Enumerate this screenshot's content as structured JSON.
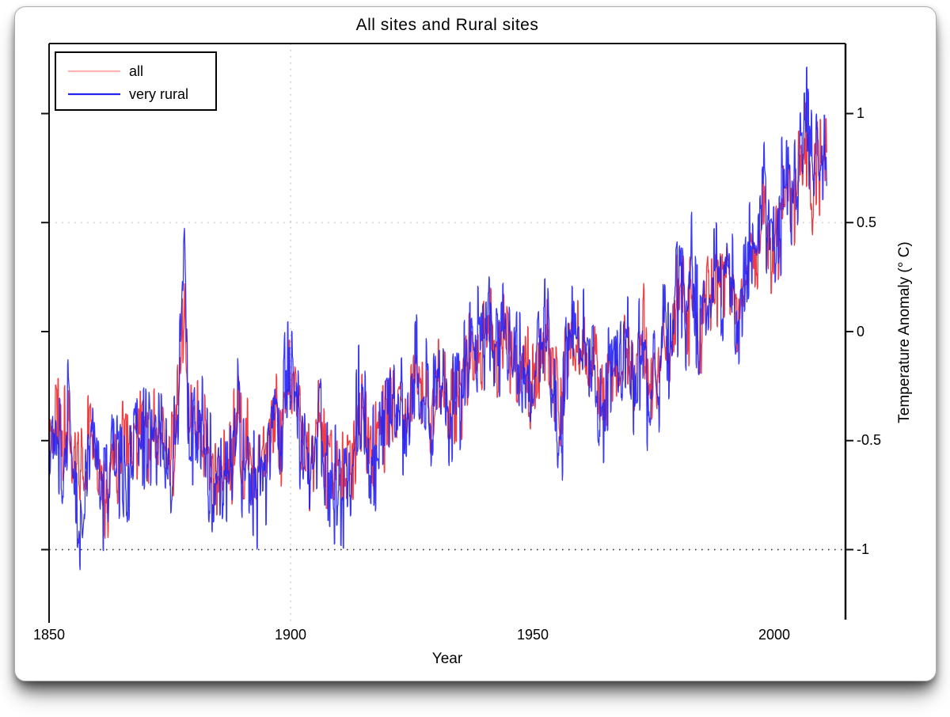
{
  "window": {
    "background": "#ffffff"
  },
  "chart_data": {
    "type": "line",
    "title": "All sites and Rural sites",
    "xlabel": "Year",
    "ylabel": "Temperature Anomaly (° C)",
    "x_ticks": [
      "1850",
      "1900",
      "1950",
      "2000"
    ],
    "x_tick_years": [
      1850,
      1900,
      1950,
      2000
    ],
    "y_ticks": [
      1,
      0.5,
      0,
      -0.5,
      -1
    ],
    "y_tick_labels": [
      "1",
      "0.5",
      "0",
      "-0.5",
      "-1"
    ],
    "xlim": [
      1850,
      2014.7
    ],
    "ylim": [
      -1.32,
      1.32
    ],
    "resolution": "monthly",
    "grid": "partial-dotted",
    "gridlines": [
      {
        "orient": "h",
        "value": 0.5,
        "color": "#c9c9c9"
      },
      {
        "orient": "v",
        "value": 1900,
        "color": "#c9c9c9"
      },
      {
        "orient": "h",
        "value": -1,
        "color": "#2a2a2a"
      }
    ],
    "colors": {
      "spine": "#111111",
      "tick": "#111111"
    },
    "legend": {
      "position": "top-left",
      "entries": [
        {
          "label": "all",
          "swatch_color": "#ffb4b4"
        },
        {
          "label": "very rural",
          "swatch_color": "#2424ee"
        }
      ]
    },
    "series": [
      {
        "name": "all",
        "color": "rgba(237,12,18,0.80)",
        "start_year": 1850,
        "monthly_noise_amp": 0.26,
        "noise_seed": 3.7,
        "annual_values": [
          -0.5,
          -0.42,
          -0.45,
          -0.52,
          -0.38,
          -0.58,
          -0.62,
          -0.7,
          -0.55,
          -0.45,
          -0.55,
          -0.68,
          -0.88,
          -0.55,
          -0.62,
          -0.5,
          -0.48,
          -0.52,
          -0.42,
          -0.48,
          -0.42,
          -0.52,
          -0.42,
          -0.48,
          -0.58,
          -0.62,
          -0.55,
          -0.2,
          0.05,
          -0.45,
          -0.45,
          -0.4,
          -0.48,
          -0.58,
          -0.68,
          -0.65,
          -0.58,
          -0.65,
          -0.52,
          -0.32,
          -0.55,
          -0.5,
          -0.62,
          -0.65,
          -0.55,
          -0.5,
          -0.38,
          -0.32,
          -0.48,
          -0.3,
          -0.28,
          -0.32,
          -0.48,
          -0.58,
          -0.62,
          -0.48,
          -0.42,
          -0.62,
          -0.62,
          -0.65,
          -0.62,
          -0.65,
          -0.62,
          -0.55,
          -0.38,
          -0.32,
          -0.52,
          -0.58,
          -0.45,
          -0.42,
          -0.4,
          -0.3,
          -0.45,
          -0.4,
          -0.42,
          -0.32,
          -0.18,
          -0.32,
          -0.3,
          -0.45,
          -0.28,
          -0.22,
          -0.28,
          -0.42,
          -0.28,
          -0.32,
          -0.25,
          -0.12,
          -0.08,
          -0.12,
          -0.02,
          0.03,
          -0.08,
          -0.06,
          0.04,
          -0.06,
          -0.16,
          -0.12,
          -0.16,
          -0.22,
          -0.28,
          -0.12,
          -0.06,
          -0.02,
          -0.22,
          -0.28,
          -0.38,
          -0.08,
          -0.02,
          -0.08,
          -0.12,
          -0.06,
          -0.12,
          -0.08,
          -0.32,
          -0.28,
          -0.22,
          -0.16,
          -0.22,
          -0.08,
          -0.12,
          -0.28,
          -0.18,
          0.02,
          -0.32,
          -0.18,
          -0.32,
          0.02,
          -0.08,
          0.02,
          0.12,
          0.22,
          0.02,
          0.22,
          0.02,
          -0.02,
          0.08,
          0.22,
          0.28,
          0.18,
          0.32,
          0.28,
          0.08,
          0.12,
          0.22,
          0.38,
          0.28,
          0.42,
          0.58,
          0.38,
          0.4,
          0.5,
          0.6,
          0.62,
          0.55,
          0.75,
          0.82,
          0.88,
          0.65,
          0.75,
          0.74
        ]
      },
      {
        "name": "very rural",
        "color": "rgba(34,34,245,0.90)",
        "start_year": 1850,
        "monthly_noise_amp": 0.34,
        "noise_seed": 9.1,
        "annual_values": [
          -0.55,
          -0.38,
          -0.5,
          -0.58,
          -0.32,
          -0.62,
          -0.72,
          -0.95,
          -0.6,
          -0.4,
          -0.6,
          -0.75,
          -0.78,
          -0.48,
          -0.72,
          -0.55,
          -0.78,
          -0.6,
          -0.38,
          -0.52,
          -0.38,
          -0.58,
          -0.38,
          -0.52,
          -0.62,
          -0.68,
          -0.6,
          -0.1,
          0.38,
          -0.5,
          -0.5,
          -0.35,
          -0.52,
          -0.62,
          -0.75,
          -0.7,
          -0.62,
          -0.72,
          -0.55,
          -0.25,
          -0.62,
          -0.55,
          -0.68,
          -0.72,
          -0.6,
          -0.55,
          -0.32,
          -0.28,
          -0.52,
          -0.25,
          -0.22,
          -0.28,
          -0.52,
          -0.62,
          -0.68,
          -0.52,
          -0.45,
          -0.68,
          -0.68,
          -0.72,
          -0.68,
          -0.72,
          -0.68,
          -0.6,
          -0.32,
          -0.28,
          -0.58,
          -0.62,
          -0.48,
          -0.45,
          -0.42,
          -0.25,
          -0.48,
          -0.42,
          -0.45,
          -0.28,
          -0.12,
          -0.35,
          -0.28,
          -0.5,
          -0.25,
          -0.18,
          -0.25,
          -0.45,
          -0.25,
          -0.35,
          -0.22,
          -0.08,
          -0.02,
          -0.1,
          0.02,
          0.08,
          -0.05,
          -0.02,
          0.08,
          -0.02,
          -0.18,
          -0.1,
          -0.18,
          -0.25,
          -0.32,
          -0.1,
          -0.02,
          0.02,
          -0.25,
          -0.32,
          -0.45,
          -0.05,
          0.02,
          -0.05,
          -0.1,
          -0.02,
          -0.1,
          -0.05,
          -0.38,
          -0.32,
          -0.25,
          -0.12,
          -0.25,
          -0.05,
          -0.1,
          -0.32,
          -0.15,
          0.05,
          -0.38,
          -0.15,
          -0.38,
          0.05,
          -0.05,
          0.05,
          0.15,
          0.28,
          0.05,
          0.28,
          0.05,
          0.0,
          0.12,
          0.28,
          0.32,
          0.22,
          0.38,
          0.32,
          0.05,
          0.15,
          0.25,
          0.42,
          0.32,
          0.48,
          0.65,
          0.42,
          0.45,
          0.55,
          0.65,
          0.68,
          0.6,
          0.85,
          0.92,
          0.95,
          0.72,
          0.82,
          0.8
        ]
      }
    ]
  }
}
